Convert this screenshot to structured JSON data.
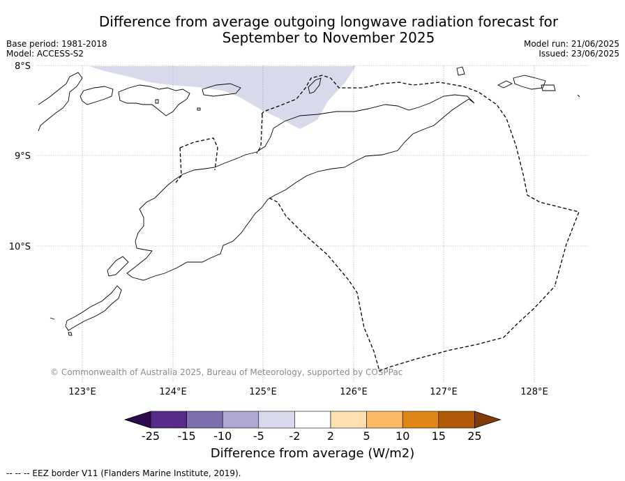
{
  "title": "Difference from average outgoing longwave radiation forecast for September to November 2025",
  "title_line1": "Difference from average outgoing longwave radiation forecast for",
  "title_line2": "September to November 2025",
  "meta_left": {
    "base_period": "Base period: 1981-2018",
    "model": "Model: ACCESS-S2"
  },
  "meta_right": {
    "model_run": "Model run: 21/06/2025",
    "issued": "Issued: 23/06/2025"
  },
  "map": {
    "lat_labels": [
      "8°S",
      "9°S",
      "10°S"
    ],
    "lon_labels": [
      "123°E",
      "124°E",
      "125°E",
      "126°E",
      "127°E",
      "128°E"
    ],
    "copyright": "© Commonwealth of Australia 2025, Bureau of Meteorology, supported by COSPPac",
    "anomaly_region_category": "-5 to -2",
    "anomaly_color": "#d8d9ea"
  },
  "colorbar": {
    "ticks": [
      "-25",
      "-15",
      "-10",
      "-5",
      "-2",
      "2",
      "5",
      "10",
      "15",
      "25"
    ],
    "colors": [
      "#2d0a4e",
      "#552a8b",
      "#7d6fad",
      "#ada9d2",
      "#d8d9ea",
      "#ffffff",
      "#fedfb2",
      "#fdb965",
      "#e08619",
      "#b35a08",
      "#7f3b08"
    ],
    "label": "Difference from average (W/m2)"
  },
  "legend_note": "--  --  -- EEZ border V11 (Flanders Marine Institute, 2019)."
}
